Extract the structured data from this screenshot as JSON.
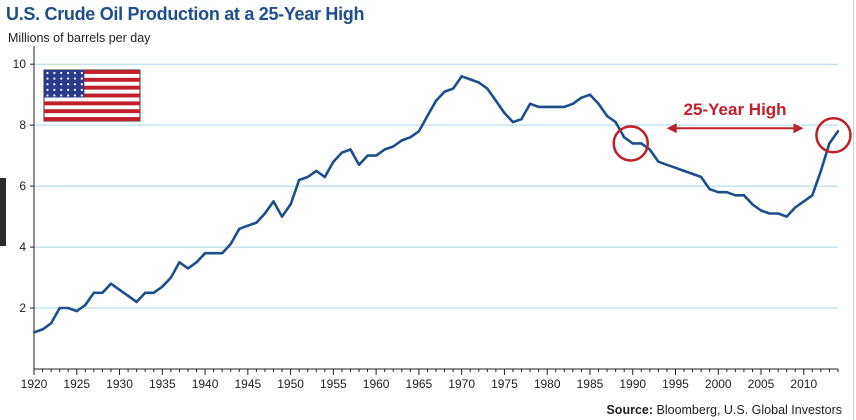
{
  "chart_data": {
    "type": "line",
    "title": "U.S. Crude Oil Production at a 25-Year High",
    "ylabel": "Millions of barrels per day",
    "xlabel": "",
    "xlim": [
      1920,
      2014
    ],
    "ylim": [
      0,
      10.4
    ],
    "yticks": [
      2,
      4,
      6,
      8,
      10
    ],
    "xticks": [
      1920,
      1925,
      1930,
      1935,
      1940,
      1945,
      1950,
      1955,
      1960,
      1965,
      1970,
      1975,
      1980,
      1985,
      1990,
      1995,
      2000,
      2005,
      2010
    ],
    "grid": "horizontal",
    "series": [
      {
        "color": "#1f4e8c",
        "x": [
          1920,
          1921,
          1922,
          1923,
          1924,
          1925,
          1926,
          1927,
          1928,
          1929,
          1930,
          1931,
          1932,
          1933,
          1934,
          1935,
          1936,
          1937,
          1938,
          1939,
          1940,
          1941,
          1942,
          1943,
          1944,
          1945,
          1946,
          1947,
          1948,
          1949,
          1950,
          1951,
          1952,
          1953,
          1954,
          1955,
          1956,
          1957,
          1958,
          1959,
          1960,
          1961,
          1962,
          1963,
          1964,
          1965,
          1966,
          1967,
          1968,
          1969,
          1970,
          1971,
          1972,
          1973,
          1974,
          1975,
          1976,
          1977,
          1978,
          1979,
          1980,
          1981,
          1982,
          1983,
          1984,
          1985,
          1986,
          1987,
          1988,
          1989,
          1990,
          1991,
          1992,
          1993,
          1994,
          1995,
          1996,
          1997,
          1998,
          1999,
          2000,
          2001,
          2002,
          2003,
          2004,
          2005,
          2006,
          2007,
          2008,
          2009,
          2010,
          2011,
          2012,
          2013,
          2014
        ],
        "values": [
          1.2,
          1.3,
          1.5,
          2.0,
          2.0,
          1.9,
          2.1,
          2.5,
          2.5,
          2.8,
          2.6,
          2.4,
          2.2,
          2.5,
          2.5,
          2.7,
          3.0,
          3.5,
          3.3,
          3.5,
          3.8,
          3.8,
          3.8,
          4.1,
          4.6,
          4.7,
          4.8,
          5.1,
          5.5,
          5.0,
          5.4,
          6.2,
          6.3,
          6.5,
          6.3,
          6.8,
          7.1,
          7.2,
          6.7,
          7.0,
          7.0,
          7.2,
          7.3,
          7.5,
          7.6,
          7.8,
          8.3,
          8.8,
          9.1,
          9.2,
          9.6,
          9.5,
          9.4,
          9.2,
          8.8,
          8.4,
          8.1,
          8.2,
          8.7,
          8.6,
          8.6,
          8.6,
          8.6,
          8.7,
          8.9,
          9.0,
          8.7,
          8.3,
          8.1,
          7.6,
          7.4,
          7.4,
          7.2,
          6.8,
          6.7,
          6.6,
          6.5,
          6.4,
          6.3,
          5.9,
          5.8,
          5.8,
          5.7,
          5.7,
          5.4,
          5.2,
          5.1,
          5.1,
          5.0,
          5.3,
          5.5,
          5.7,
          6.5,
          7.4,
          7.8
        ]
      }
    ],
    "annotations": [
      {
        "text": "25-Year High",
        "from_year": 1990,
        "to_year": 2013,
        "level": 7.9
      }
    ]
  },
  "source_label": "Source:",
  "source_text": "Bloomberg, U.S. Global Investors",
  "colors": {
    "line": "#1f4e8c",
    "grid": "#a6d8e8",
    "axis": "#222222",
    "accent": "#c0202a",
    "title": "#1f4e8c",
    "flag_red": "#c0202a",
    "flag_blue": "#2b3a8c"
  },
  "icons": [
    "us-flag-icon",
    "double-arrow-icon",
    "highlight-circle-icon"
  ]
}
